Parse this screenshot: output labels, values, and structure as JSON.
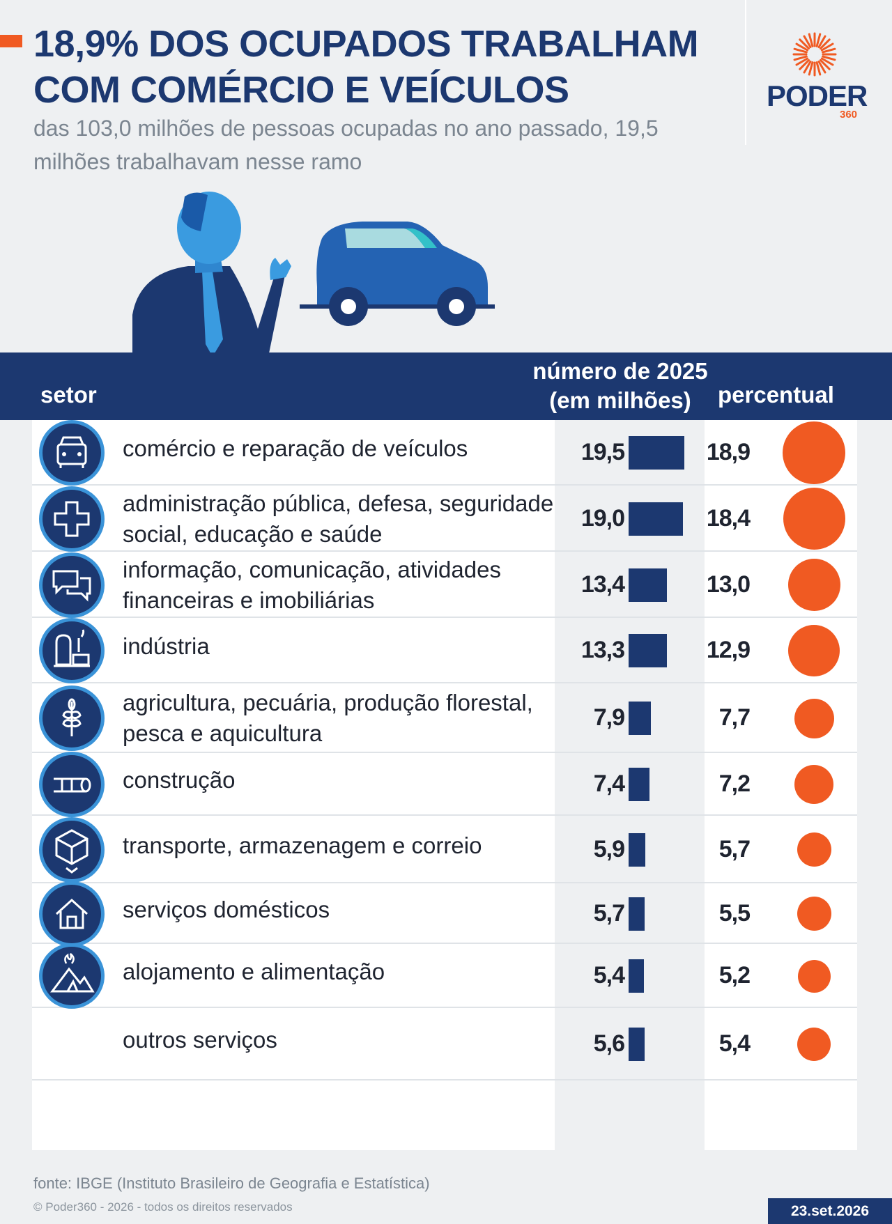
{
  "header": {
    "title_line1": "18,9% DOS OCUPADOS TRABALHAM",
    "title_line2": "COM COMÉRCIO E VEÍCULOS",
    "subtitle": "das 103,0 milhões de pessoas ocupadas no ano passado, 19,5 milhões trabalhavam nesse ramo"
  },
  "logo": {
    "word": "PODER",
    "number": "360"
  },
  "colors": {
    "navy": "#1c3870",
    "accent": "#f05a22",
    "icon_ring": "#3a93d8"
  },
  "table": {
    "col_sector": "setor",
    "col_number_line1": "número de 2025",
    "col_number_line2": "(em milhões)",
    "col_percent": "percentual"
  },
  "chart_data": {
    "type": "table",
    "columns": [
      "setor",
      "número de 2025 (em milhões)",
      "percentual"
    ],
    "rows": [
      {
        "sector": "comércio e reparação de veículos",
        "value": 19.5,
        "value_label": "19,5",
        "percent": 18.9,
        "percent_label": "18,9",
        "icon": "car-icon"
      },
      {
        "sector": "administração pública, defesa, seguridade social, educação e saúde",
        "value": 19.0,
        "value_label": "19,0",
        "percent": 18.4,
        "percent_label": "18,4",
        "icon": "cross-icon"
      },
      {
        "sector": "informação, comunicação, atividades financeiras e imobiliárias",
        "value": 13.4,
        "value_label": "13,4",
        "percent": 13.0,
        "percent_label": "13,0",
        "icon": "chat-bubbles-icon"
      },
      {
        "sector": "indústria",
        "value": 13.3,
        "value_label": "13,3",
        "percent": 12.9,
        "percent_label": "12,9",
        "icon": "factory-icon"
      },
      {
        "sector": "agricultura, pecuária, produção florestal, pesca e aquicultura",
        "value": 7.9,
        "value_label": "7,9",
        "percent": 7.7,
        "percent_label": "7,7",
        "icon": "wheat-icon"
      },
      {
        "sector": "construção",
        "value": 7.4,
        "value_label": "7,4",
        "percent": 7.2,
        "percent_label": "7,2",
        "icon": "pipe-icon"
      },
      {
        "sector": "transporte, armazenagem e correio",
        "value": 5.9,
        "value_label": "5,9",
        "percent": 5.7,
        "percent_label": "5,7",
        "icon": "package-icon"
      },
      {
        "sector": "serviços domésticos",
        "value": 5.7,
        "value_label": "5,7",
        "percent": 5.5,
        "percent_label": "5,5",
        "icon": "house-icon"
      },
      {
        "sector": "alojamento e alimentação",
        "value": 5.4,
        "value_label": "5,4",
        "percent": 5.2,
        "percent_label": "5,2",
        "icon": "tent-fire-icon"
      },
      {
        "sector": "outros serviços",
        "value": 5.6,
        "value_label": "5,6",
        "percent": 5.4,
        "percent_label": "5,4",
        "icon": ""
      }
    ]
  },
  "footer": {
    "source": "fonte: IBGE (Instituto Brasileiro de Geografia e Estatística)",
    "copyright": "© Poder360 - 2026 - todos os direitos reservados",
    "date": "23.set.2026"
  }
}
